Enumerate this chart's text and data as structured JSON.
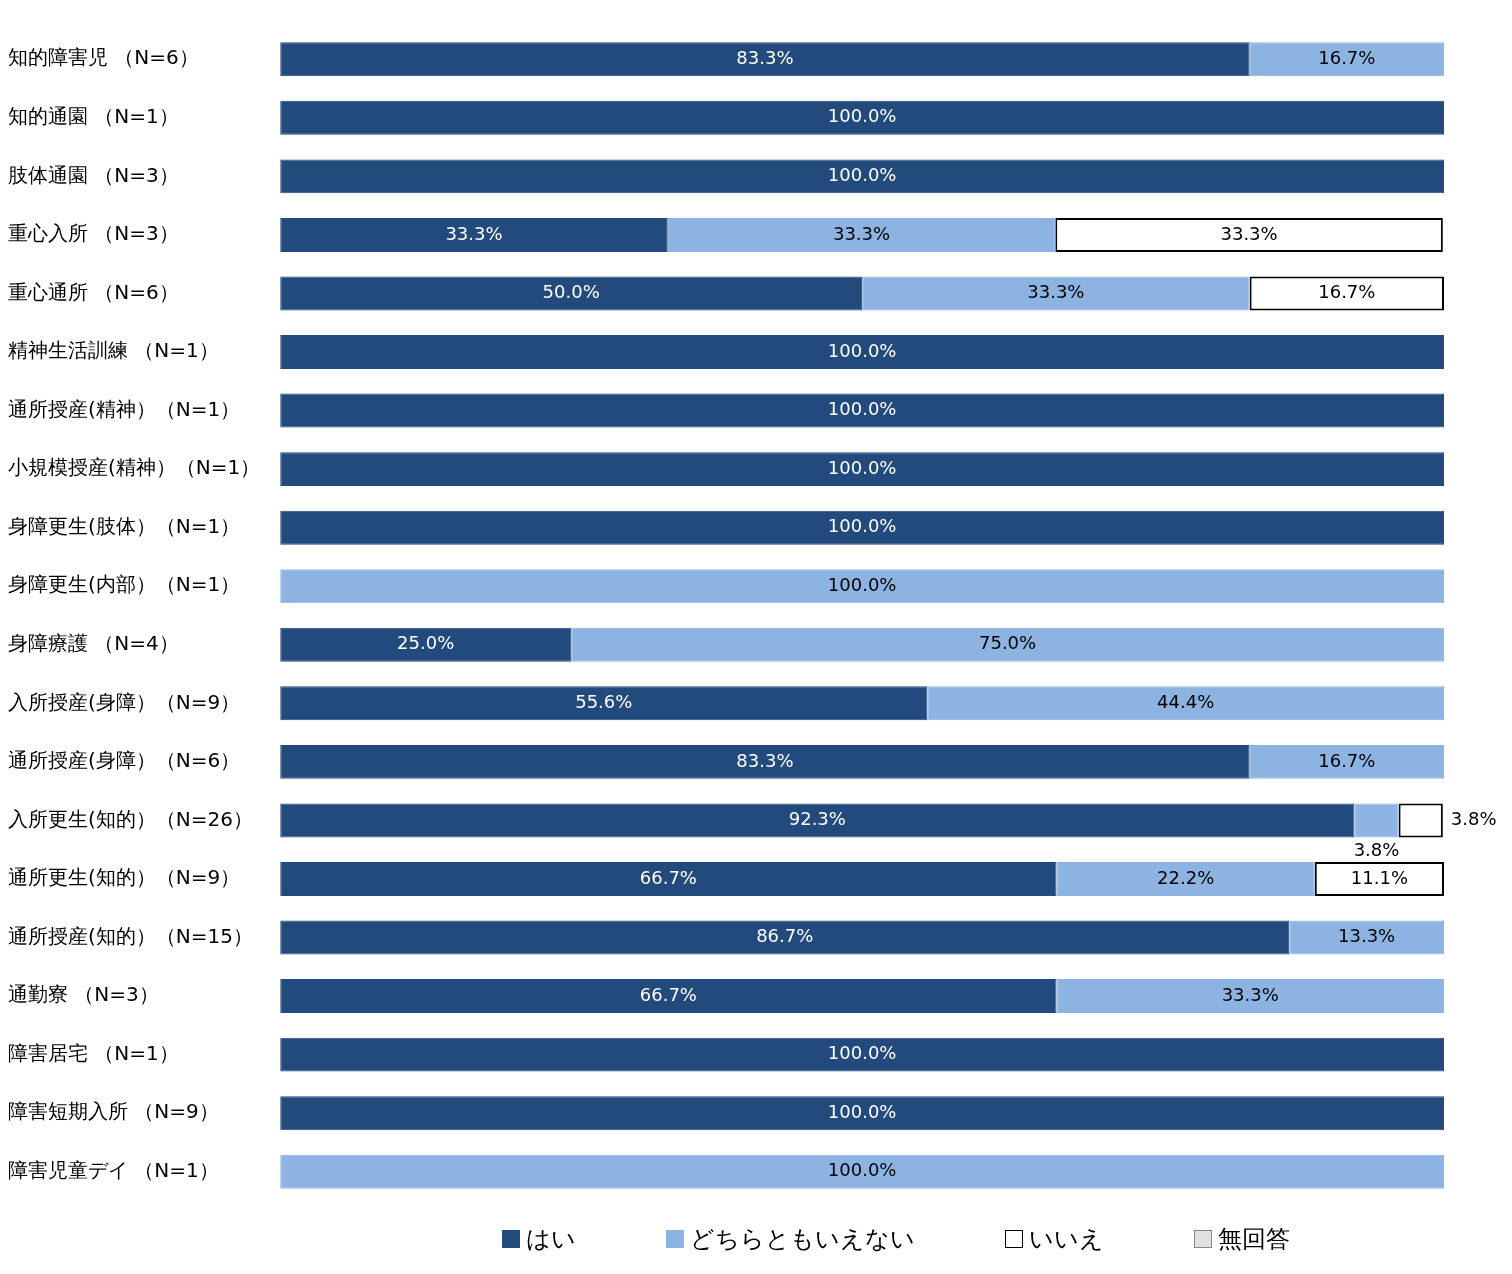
{
  "chart_data": {
    "type": "bar",
    "orientation": "horizontal",
    "stacked": true,
    "legend": "bottom",
    "tick_labels": "y",
    "xlim": [
      0,
      100
    ],
    "categories": [
      "知的障害児 （N=6）",
      "知的通園 （N=1）",
      "肢体通園 （N=3）",
      "重心入所 （N=3）",
      "重心通所 （N=6）",
      "精神生活訓練 （N=1）",
      "通所授産(精神）（N=1）",
      "小規模授産(精神）（N=1）",
      "身障更生(肢体）（N=1）",
      "身障更生(内部）（N=1）",
      "身障療護 （N=4）",
      "入所授産(身障）（N=9）",
      "通所授産(身障）（N=6）",
      "入所更生(知的）（N=26）",
      "通所更生(知的）（N=9）",
      "通所授産(知的）（N=15）",
      "通勤寮 （N=3）",
      "障害居宅 （N=1）",
      "障害短期入所 （N=9）",
      "障害児童デイ （N=1）"
    ],
    "series": [
      {
        "name": "はい",
        "color": "#234a7c",
        "values": [
          83.3,
          100,
          100,
          33.3,
          50.0,
          100,
          100,
          100,
          100,
          null,
          25.0,
          55.6,
          83.3,
          92.3,
          66.7,
          86.7,
          66.7,
          100,
          100,
          null
        ],
        "value_labels": [
          "83.3%",
          "100.0%",
          "100.0%",
          "33.3%",
          "50.0%",
          "100.0%",
          "100.0%",
          "100.0%",
          "100.0%",
          null,
          "25.0%",
          "55.6%",
          "83.3%",
          "92.3%",
          "66.7%",
          "86.7%",
          "66.7%",
          "100.0%",
          "100.0%",
          null
        ]
      },
      {
        "name": "どちらともいえない",
        "color": "#8db3e2",
        "values": [
          16.7,
          null,
          null,
          33.3,
          33.3,
          null,
          null,
          null,
          null,
          100,
          75.0,
          44.4,
          16.7,
          3.8,
          22.2,
          13.3,
          33.3,
          null,
          null,
          100
        ],
        "value_labels": [
          "16.7%",
          null,
          null,
          "33.3%",
          "33.3%",
          null,
          null,
          null,
          null,
          "100.0%",
          "75.0%",
          "44.4%",
          "16.7%",
          "3.8%",
          "22.2%",
          "13.3%",
          "33.3%",
          null,
          null,
          "100.0%"
        ]
      },
      {
        "name": "いいえ",
        "color": "#ffffff",
        "values": [
          null,
          null,
          null,
          33.3,
          16.7,
          null,
          null,
          null,
          null,
          null,
          null,
          null,
          null,
          3.8,
          11.1,
          null,
          null,
          null,
          null,
          null
        ],
        "value_labels": [
          null,
          null,
          null,
          "33.3%",
          "16.7%",
          null,
          null,
          null,
          null,
          null,
          null,
          null,
          null,
          "3.8%",
          "11.1%",
          null,
          null,
          null,
          null,
          null
        ]
      },
      {
        "name": "無回答",
        "color": "#e0e0e0",
        "values": [
          null,
          null,
          null,
          null,
          null,
          null,
          null,
          null,
          null,
          null,
          null,
          null,
          null,
          null,
          null,
          null,
          null,
          null,
          null,
          null
        ]
      }
    ]
  }
}
